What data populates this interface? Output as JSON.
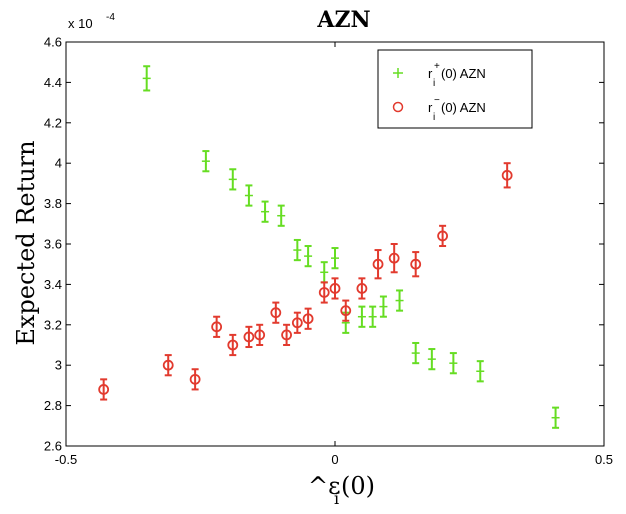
{
  "chart_data": {
    "type": "scatter",
    "title": "AZN",
    "xlabel": "^ε_i(0)",
    "xlabel_base": "^ε",
    "xlabel_sub": "i",
    "xlabel_tail": "(0)",
    "ylabel": "Expected Return",
    "y_exponent_label": "x 10",
    "y_exponent_power": "-4",
    "xlim": [
      -0.5,
      0.5
    ],
    "ylim": [
      2.6,
      4.6
    ],
    "xticks": [
      -0.5,
      0,
      0.5
    ],
    "xtick_labels": [
      "-0.5",
      "0",
      "0.5"
    ],
    "yticks": [
      2.6,
      2.8,
      3.0,
      3.2,
      3.4,
      3.6,
      3.8,
      4.0,
      4.2,
      4.4,
      4.6
    ],
    "ytick_labels": [
      "2.6",
      "2.8",
      "3",
      "3.2",
      "3.4",
      "3.6",
      "3.8",
      "4",
      "4.2",
      "4.4",
      "4.6"
    ],
    "grid": false,
    "legend_position": "top-right",
    "series": [
      {
        "name": "r_i^+(0) AZN",
        "legend_base": "r",
        "legend_sub": "i",
        "legend_sup": "+",
        "legend_tail": "(0)  AZN",
        "marker": "plus",
        "color": "#66dd22",
        "points": [
          {
            "x": -0.35,
            "y": 4.42,
            "err": 0.06
          },
          {
            "x": -0.24,
            "y": 4.01,
            "err": 0.05
          },
          {
            "x": -0.19,
            "y": 3.92,
            "err": 0.05
          },
          {
            "x": -0.16,
            "y": 3.84,
            "err": 0.05
          },
          {
            "x": -0.13,
            "y": 3.76,
            "err": 0.05
          },
          {
            "x": -0.1,
            "y": 3.74,
            "err": 0.05
          },
          {
            "x": -0.07,
            "y": 3.57,
            "err": 0.05
          },
          {
            "x": -0.05,
            "y": 3.54,
            "err": 0.05
          },
          {
            "x": -0.02,
            "y": 3.46,
            "err": 0.05
          },
          {
            "x": 0.0,
            "y": 3.53,
            "err": 0.05
          },
          {
            "x": 0.02,
            "y": 3.21,
            "err": 0.05
          },
          {
            "x": 0.05,
            "y": 3.24,
            "err": 0.05
          },
          {
            "x": 0.07,
            "y": 3.24,
            "err": 0.05
          },
          {
            "x": 0.09,
            "y": 3.29,
            "err": 0.05
          },
          {
            "x": 0.12,
            "y": 3.32,
            "err": 0.05
          },
          {
            "x": 0.15,
            "y": 3.06,
            "err": 0.05
          },
          {
            "x": 0.18,
            "y": 3.03,
            "err": 0.05
          },
          {
            "x": 0.22,
            "y": 3.01,
            "err": 0.05
          },
          {
            "x": 0.27,
            "y": 2.97,
            "err": 0.05
          },
          {
            "x": 0.41,
            "y": 2.74,
            "err": 0.05
          }
        ]
      },
      {
        "name": "r_i^-(0) AZN",
        "legend_base": "r",
        "legend_sub": "i",
        "legend_sup": "−",
        "legend_tail": "(0)  AZN",
        "marker": "circle",
        "color": "#e23a2e",
        "points": [
          {
            "x": -0.43,
            "y": 2.88,
            "err": 0.05
          },
          {
            "x": -0.31,
            "y": 3.0,
            "err": 0.05
          },
          {
            "x": -0.26,
            "y": 2.93,
            "err": 0.05
          },
          {
            "x": -0.22,
            "y": 3.19,
            "err": 0.05
          },
          {
            "x": -0.19,
            "y": 3.1,
            "err": 0.05
          },
          {
            "x": -0.16,
            "y": 3.14,
            "err": 0.05
          },
          {
            "x": -0.14,
            "y": 3.15,
            "err": 0.05
          },
          {
            "x": -0.11,
            "y": 3.26,
            "err": 0.05
          },
          {
            "x": -0.09,
            "y": 3.15,
            "err": 0.05
          },
          {
            "x": -0.07,
            "y": 3.21,
            "err": 0.05
          },
          {
            "x": -0.05,
            "y": 3.23,
            "err": 0.05
          },
          {
            "x": -0.02,
            "y": 3.36,
            "err": 0.05
          },
          {
            "x": 0.0,
            "y": 3.38,
            "err": 0.05
          },
          {
            "x": 0.02,
            "y": 3.27,
            "err": 0.05
          },
          {
            "x": 0.05,
            "y": 3.38,
            "err": 0.05
          },
          {
            "x": 0.08,
            "y": 3.5,
            "err": 0.07
          },
          {
            "x": 0.11,
            "y": 3.53,
            "err": 0.07
          },
          {
            "x": 0.15,
            "y": 3.5,
            "err": 0.06
          },
          {
            "x": 0.2,
            "y": 3.64,
            "err": 0.05
          },
          {
            "x": 0.32,
            "y": 3.94,
            "err": 0.06
          }
        ]
      }
    ]
  }
}
